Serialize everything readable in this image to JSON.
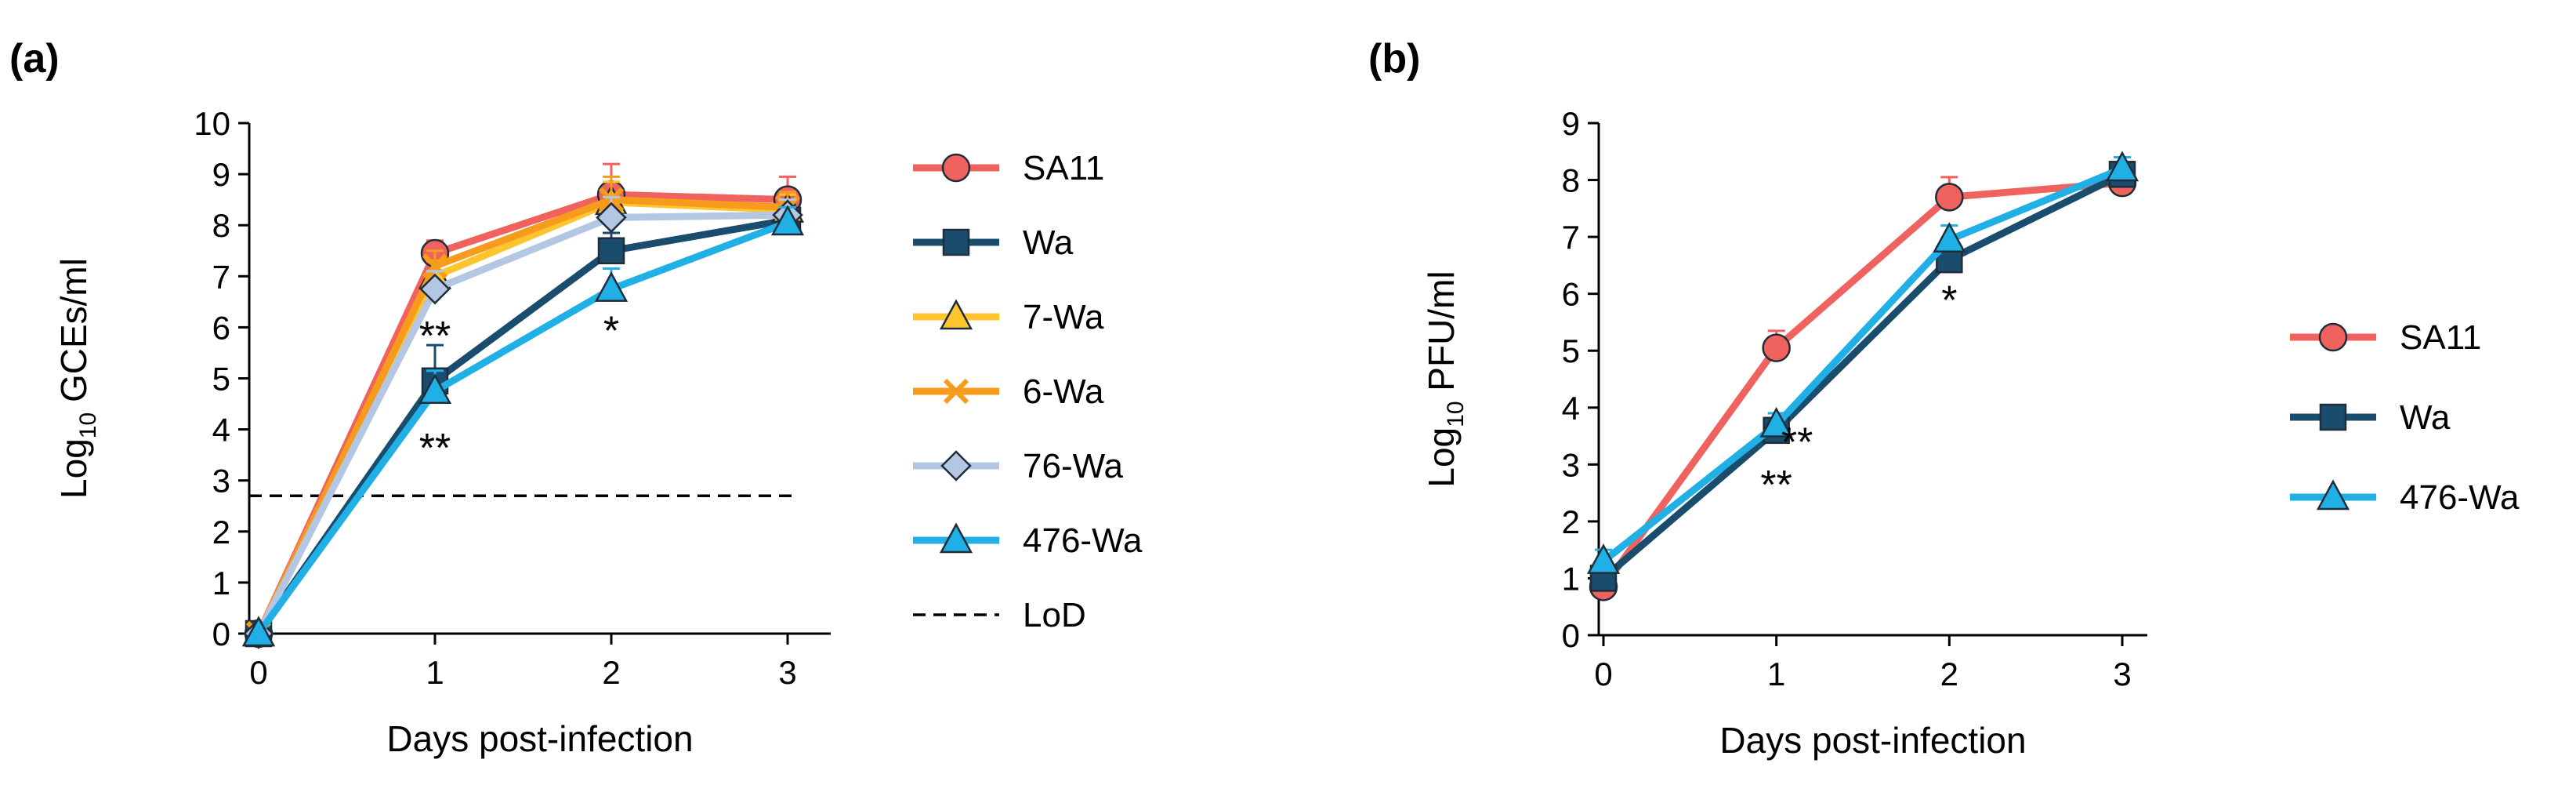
{
  "chart_data": [
    {
      "panel_label": "(a)",
      "type": "line",
      "xlabel": "Days post-infection",
      "ylabel_main": "Log",
      "ylabel_sub": "10",
      "ylabel_rest": " GCEs/ml",
      "x": [
        0,
        1,
        2,
        3
      ],
      "x_tick_labels": [
        "0",
        "1",
        "2",
        "3"
      ],
      "ylim": [
        0,
        10
      ],
      "y_tick_labels": [
        "0",
        "1",
        "2",
        "3",
        "4",
        "5",
        "6",
        "7",
        "8",
        "9",
        "10"
      ],
      "series": [
        {
          "name": "SA11",
          "color": "#F0625E",
          "marker": "circle",
          "values": [
            0,
            7.45,
            8.6,
            8.5
          ],
          "errors": [
            0,
            0.25,
            0.6,
            0.45
          ]
        },
        {
          "name": "Wa",
          "color": "#1A4C6E",
          "marker": "square",
          "values": [
            0,
            4.95,
            7.5,
            8.1
          ],
          "errors": [
            0,
            0.7,
            0.35,
            0.3
          ]
        },
        {
          "name": "7-Wa",
          "color": "#FFC52F",
          "marker": "triangle",
          "values": [
            0,
            7.0,
            8.45,
            8.3
          ],
          "errors": [
            0,
            0.3,
            0.4,
            0.3
          ]
        },
        {
          "name": "6-Wa",
          "color": "#F79B1C",
          "marker": "x",
          "values": [
            0,
            7.2,
            8.5,
            8.35
          ],
          "errors": [
            0,
            0.3,
            0.45,
            0.3
          ]
        },
        {
          "name": "76-Wa",
          "color": "#B4C7E2",
          "marker": "diamond",
          "values": [
            0,
            6.75,
            8.15,
            8.2
          ],
          "errors": [
            0,
            0.35,
            0.4,
            0.3
          ]
        },
        {
          "name": "476-Wa",
          "color": "#20B0E6",
          "marker": "triangle",
          "values": [
            0,
            4.75,
            6.75,
            8.05
          ],
          "errors": [
            0,
            0.4,
            0.4,
            0.3
          ]
        }
      ],
      "lod": {
        "name": "LoD",
        "value": 2.7
      },
      "annotations": [
        {
          "text": "**",
          "x": 1,
          "y": 5.9
        },
        {
          "text": "**",
          "x": 1,
          "y": 3.7
        },
        {
          "text": "*",
          "x": 2,
          "y": 6.0
        }
      ],
      "legend": "right"
    },
    {
      "panel_label": "(b)",
      "type": "line",
      "xlabel": "Days post-infection",
      "ylabel_main": "Log",
      "ylabel_sub": "10",
      "ylabel_rest": " PFU/ml",
      "x": [
        0,
        1,
        2,
        3
      ],
      "x_tick_labels": [
        "0",
        "1",
        "2",
        "3"
      ],
      "ylim": [
        0,
        9
      ],
      "y_tick_labels": [
        "0",
        "1",
        "2",
        "3",
        "4",
        "5",
        "6",
        "7",
        "8",
        "9"
      ],
      "series": [
        {
          "name": "SA11",
          "color": "#F0625E",
          "marker": "circle",
          "values": [
            0.85,
            5.05,
            7.7,
            7.95
          ],
          "errors": [
            0.3,
            0.3,
            0.35,
            0.2
          ]
        },
        {
          "name": "Wa",
          "color": "#1A4C6E",
          "marker": "square",
          "values": [
            1.0,
            3.6,
            6.6,
            8.1
          ],
          "errors": [
            0.2,
            0.2,
            0.25,
            0.2
          ]
        },
        {
          "name": "476-Wa",
          "color": "#20B0E6",
          "marker": "triangle",
          "values": [
            1.3,
            3.7,
            6.95,
            8.2
          ],
          "errors": [
            0.2,
            0.2,
            0.25,
            0.2
          ]
        }
      ],
      "annotations": [
        {
          "text": "**",
          "x": 1.12,
          "y": 3.45
        },
        {
          "text": "**",
          "x": 1.0,
          "y": 2.7
        },
        {
          "text": "*",
          "x": 2,
          "y": 5.95
        }
      ],
      "legend": "right"
    }
  ]
}
